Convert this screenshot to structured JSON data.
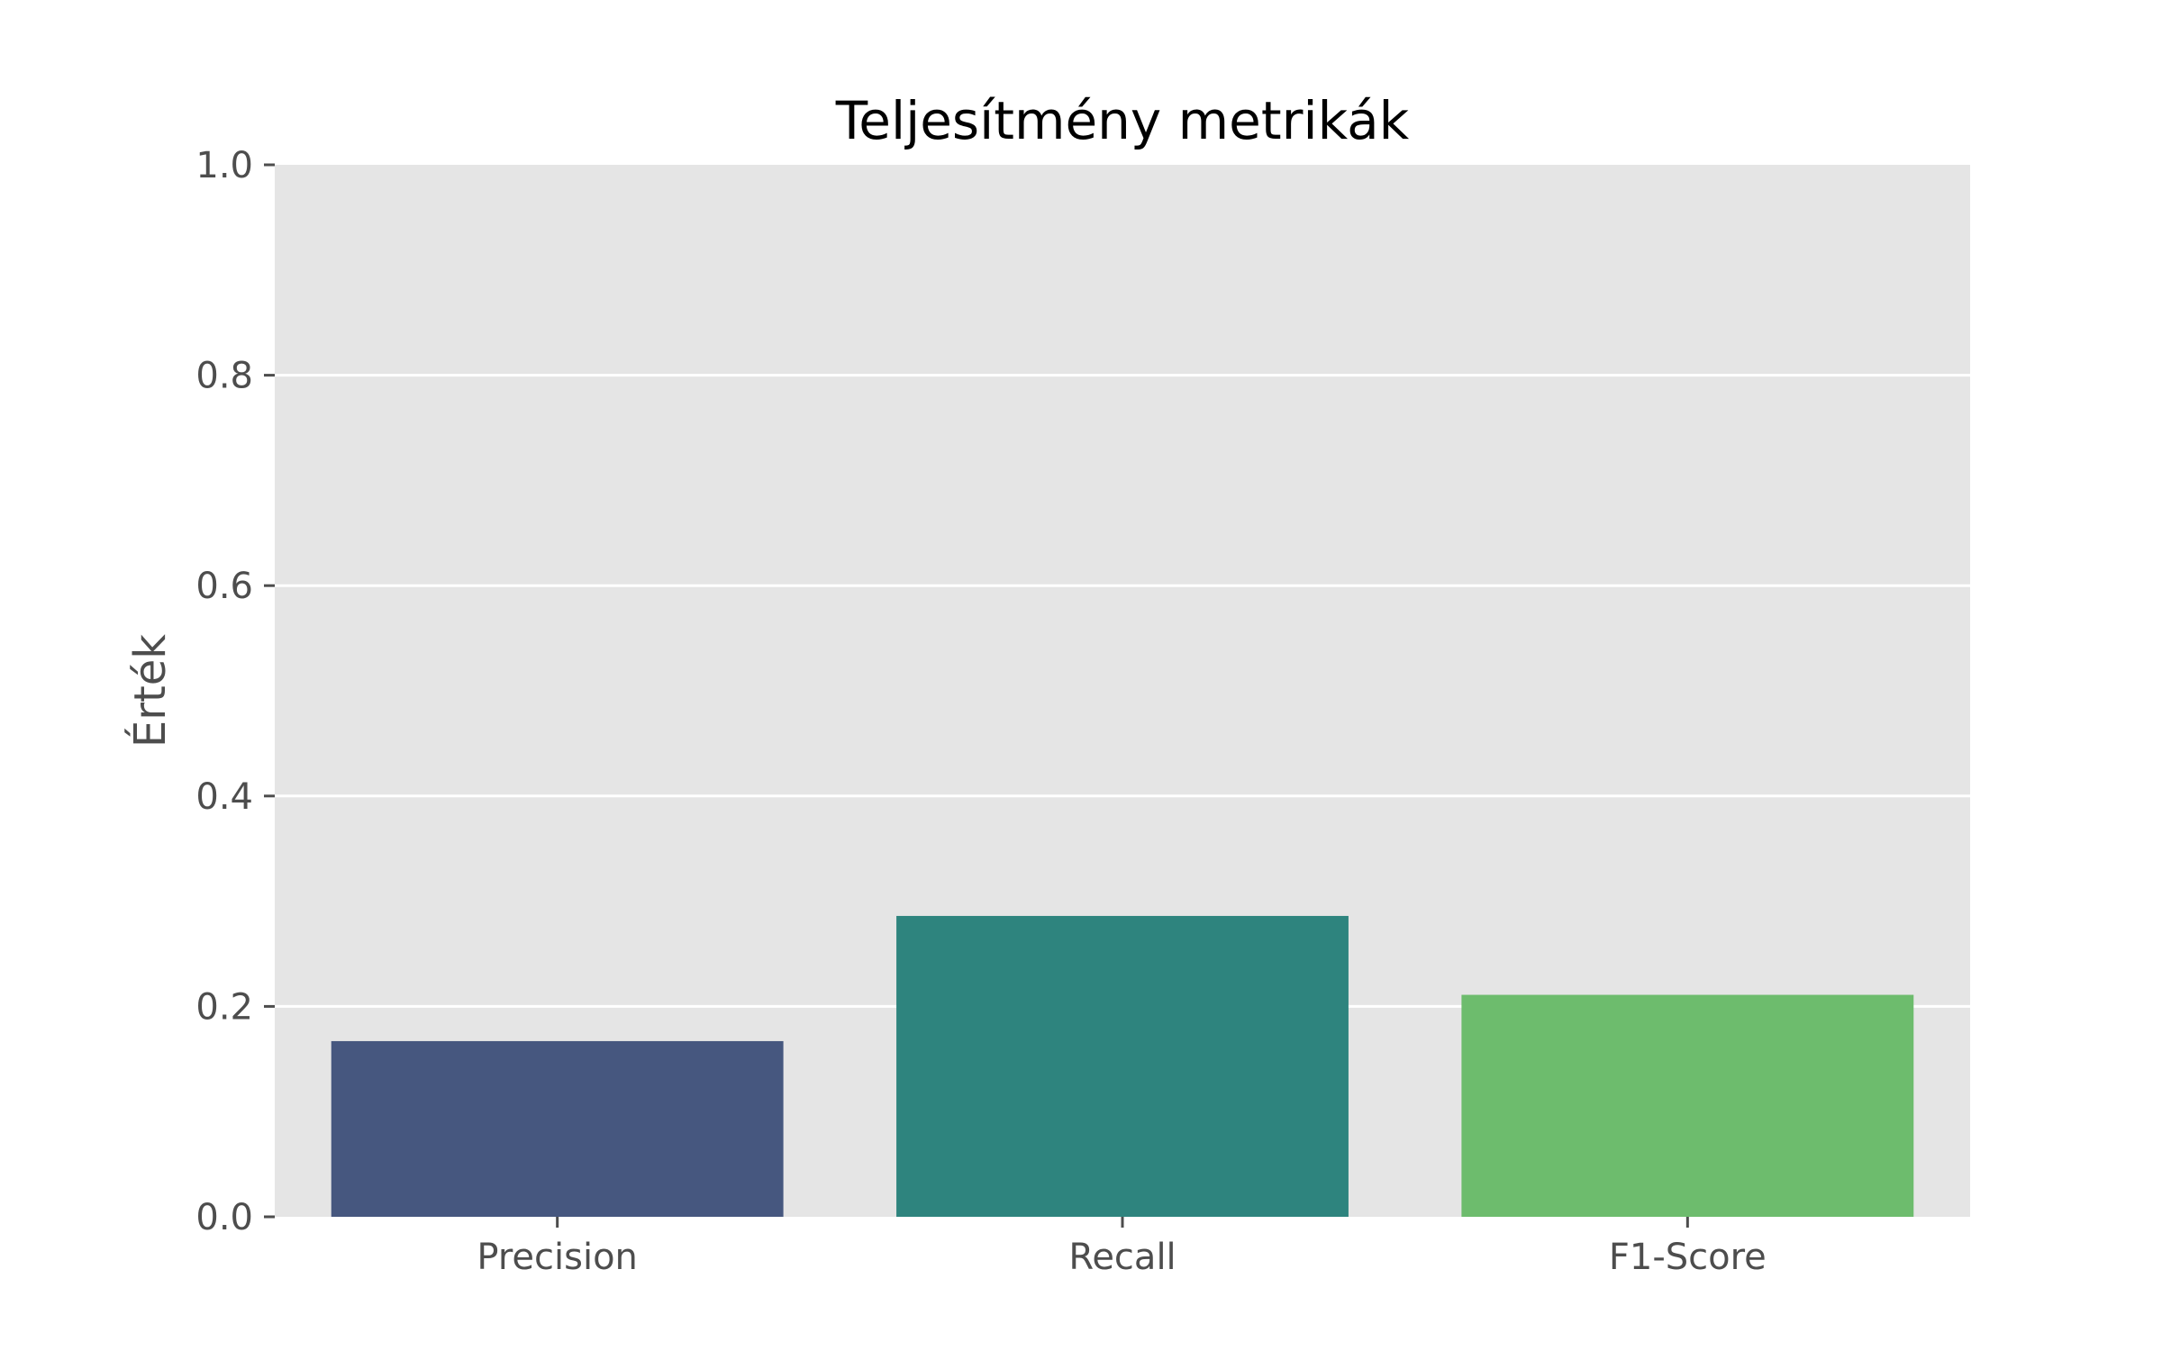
{
  "chart_data": {
    "type": "bar",
    "title": "Teljesítmény metrikák",
    "xlabel": "",
    "ylabel": "Érték",
    "categories": [
      "Precision",
      "Recall",
      "F1-Score"
    ],
    "values": [
      0.167,
      0.286,
      0.211
    ],
    "colors": [
      "#46577f",
      "#2e847e",
      "#6dbc6d"
    ],
    "ylim": [
      0,
      1.0
    ],
    "yticks": [
      0.0,
      0.2,
      0.4,
      0.6,
      0.8,
      1.0
    ],
    "ytick_labels": [
      "0.0",
      "0.2",
      "0.4",
      "0.6",
      "0.8",
      "1.0"
    ],
    "grid": true,
    "grid_axis": "y",
    "background_color": "#e5e5e5",
    "grid_color": "#ffffff",
    "legend": "none"
  }
}
